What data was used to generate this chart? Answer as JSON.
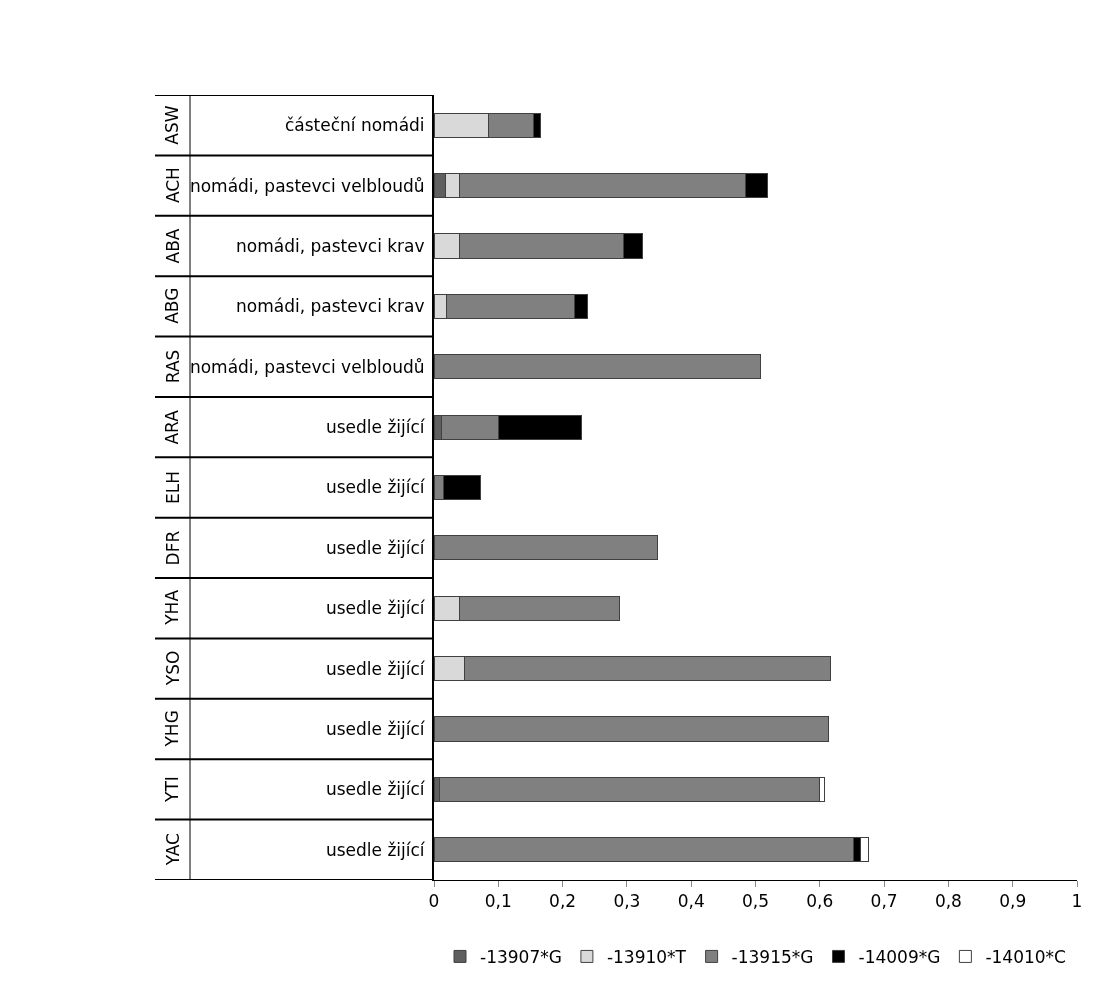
{
  "chart_data": {
    "type": "bar",
    "orientation": "horizontal",
    "stacked": true,
    "categories": [
      "částeční nomádi",
      "nomádi, pastevci velbloudů",
      "nomádi, pastevci krav",
      "nomádi, pastevci krav",
      "nomádi, pastevci velbloudů",
      "usedle žijící",
      "usedle žijící",
      "usedle žijící",
      "usedle žijící",
      "usedle žijící",
      "usedle žijící",
      "usedle žijící",
      "usedle žijící"
    ],
    "annotations": [
      "ASW",
      "ACH",
      "ABA",
      "ABG",
      "RAS",
      "ARA",
      "ELH",
      "DFR",
      "YHA",
      "YSO",
      "YHG",
      "YTI",
      "YAC"
    ],
    "series": [
      {
        "name": "-13907*G",
        "color": "#5f5f5f",
        "values": [
          null,
          0.018,
          null,
          null,
          null,
          0.012,
          null,
          null,
          null,
          null,
          null,
          0.008,
          null
        ]
      },
      {
        "name": "-13910*T",
        "color": "#d9d9d9",
        "values": [
          0.085,
          0.021,
          0.039,
          0.02,
          null,
          null,
          null,
          null,
          0.039,
          0.047,
          null,
          null,
          null
        ]
      },
      {
        "name": "-13915*G",
        "color": "#808080",
        "values": [
          0.07,
          0.445,
          0.256,
          0.198,
          0.507,
          0.088,
          0.015,
          0.348,
          0.25,
          0.569,
          0.614,
          0.591,
          0.652
        ]
      },
      {
        "name": "-14009*G",
        "color": "#000000",
        "values": [
          0.01,
          0.035,
          0.03,
          0.02,
          null,
          0.13,
          0.058,
          null,
          null,
          null,
          null,
          null,
          0.012
        ]
      },
      {
        "name": "-14010*C",
        "color": "#ffffff",
        "values": [
          null,
          null,
          null,
          null,
          null,
          null,
          null,
          null,
          null,
          null,
          null,
          0.008,
          0.011
        ]
      }
    ],
    "xlim": [
      0,
      1
    ],
    "xticks": [
      0,
      {
        "value": 0.1,
        "label": "0,1"
      },
      {
        "value": 0.2,
        "label": "0,2"
      },
      {
        "value": 0.3,
        "label": "0,3"
      },
      {
        "value": 0.4,
        "label": "0,4"
      },
      {
        "value": 0.5,
        "label": "0,5"
      },
      {
        "value": 0.6,
        "label": "0,6"
      },
      {
        "value": 0.7,
        "label": "0,7"
      },
      {
        "value": 0.8,
        "label": "0,8"
      },
      {
        "value": 0.9,
        "label": "0,9"
      },
      1
    ],
    "legend": "bottom"
  }
}
